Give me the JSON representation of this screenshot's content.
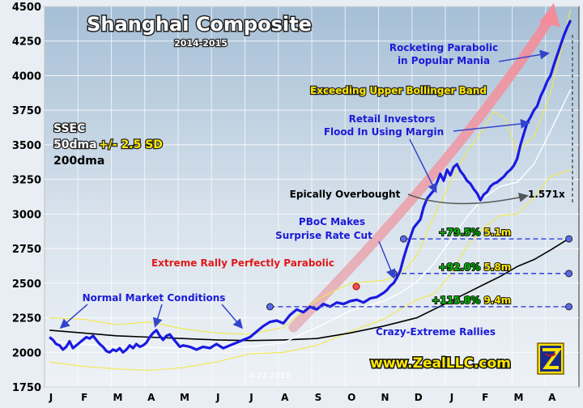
{
  "chart_data": {
    "type": "line",
    "title": "Shanghai Composite",
    "subtitle": "2014-2015",
    "ylim": [
      1750,
      4500
    ],
    "yticks": [
      "1750",
      "2000",
      "2250",
      "2500",
      "2750",
      "3000",
      "3250",
      "3500",
      "3750",
      "4000",
      "4250",
      "4500"
    ],
    "ytick_values": [
      1750,
      2000,
      2250,
      2500,
      2750,
      3000,
      3250,
      3500,
      3750,
      4000,
      4250,
      4500
    ],
    "x_categories": [
      "J",
      "F",
      "M",
      "A",
      "M",
      "J",
      "J",
      "A",
      "S",
      "O",
      "N",
      "D",
      "J",
      "F",
      "M",
      "A"
    ],
    "grid": true,
    "legend": {
      "ssec": "SSEC",
      "dma50": "50dma",
      "sd": "+/- 2.5 SD",
      "dma200": "200dma"
    },
    "colors": {
      "price": "#1a1ae0",
      "dma50": "#ffffff",
      "bands": "#f2e84a",
      "dma200": "#000000",
      "arrow": "#f0a0a0",
      "rally_green": "#00c000",
      "rally_gold": "#ffe800",
      "background_top": "#aac2d8",
      "background_bottom": "#e8eef3"
    },
    "series": [
      {
        "name": "SSEC",
        "x": [
          0,
          0.1,
          0.2,
          0.3,
          0.4,
          0.5,
          0.6,
          0.7,
          0.8,
          0.9,
          1.0,
          1.1,
          1.2,
          1.3,
          1.4,
          1.5,
          1.6,
          1.7,
          1.8,
          1.9,
          2.0,
          2.1,
          2.2,
          2.3,
          2.4,
          2.5,
          2.6,
          2.7,
          2.8,
          2.9,
          3.0,
          3.1,
          3.2,
          3.3,
          3.4,
          3.5,
          3.6,
          3.7,
          3.8,
          3.9,
          4.0,
          4.2,
          4.4,
          4.6,
          4.8,
          5.0,
          5.2,
          5.4,
          5.6,
          5.8,
          6.0,
          6.2,
          6.4,
          6.6,
          6.8,
          7.0,
          7.2,
          7.4,
          7.6,
          7.8,
          8.0,
          8.2,
          8.4,
          8.6,
          8.8,
          9.0,
          9.2,
          9.4,
          9.6,
          9.8,
          10.0,
          10.1,
          10.2,
          10.3,
          10.4,
          10.5,
          10.6,
          10.7,
          10.8,
          10.9,
          11.0,
          11.1,
          11.2,
          11.3,
          11.4,
          11.5,
          11.6,
          11.7,
          11.8,
          11.9,
          12.0,
          12.1,
          12.2,
          12.3,
          12.4,
          12.5,
          12.6,
          12.7,
          12.8,
          12.9,
          13.0,
          13.1,
          13.2,
          13.3,
          13.4,
          13.5,
          13.6,
          13.7,
          13.8,
          13.9,
          14.0,
          14.1,
          14.2,
          14.3,
          14.4,
          14.5,
          14.6,
          14.7,
          14.8,
          14.9,
          15.0,
          15.1,
          15.2,
          15.3,
          15.4,
          15.5,
          15.6
        ],
        "values": [
          2110,
          2090,
          2060,
          2050,
          2020,
          2040,
          2080,
          2030,
          2050,
          2070,
          2090,
          2110,
          2100,
          2120,
          2090,
          2060,
          2040,
          2010,
          2000,
          2020,
          2010,
          2030,
          2000,
          2020,
          2050,
          2030,
          2060,
          2040,
          2050,
          2070,
          2110,
          2140,
          2160,
          2120,
          2090,
          2120,
          2130,
          2100,
          2070,
          2040,
          2050,
          2040,
          2020,
          2040,
          2030,
          2060,
          2030,
          2050,
          2070,
          2090,
          2110,
          2150,
          2190,
          2220,
          2230,
          2210,
          2270,
          2310,
          2290,
          2330,
          2310,
          2350,
          2330,
          2360,
          2350,
          2370,
          2380,
          2360,
          2390,
          2400,
          2430,
          2450,
          2480,
          2500,
          2540,
          2590,
          2680,
          2760,
          2830,
          2900,
          2930,
          2960,
          3050,
          3110,
          3140,
          3170,
          3230,
          3290,
          3240,
          3320,
          3280,
          3340,
          3360,
          3310,
          3280,
          3240,
          3220,
          3180,
          3150,
          3100,
          3140,
          3160,
          3200,
          3220,
          3230,
          3250,
          3270,
          3300,
          3320,
          3350,
          3400,
          3500,
          3580,
          3660,
          3700,
          3750,
          3780,
          3850,
          3900,
          3960,
          4000,
          4080,
          4150,
          4220,
          4290,
          4350,
          4400
        ]
      },
      {
        "name": "50dma",
        "x": [
          0,
          1,
          2,
          3,
          4,
          5,
          6,
          7,
          8,
          9,
          10,
          10.5,
          11,
          11.5,
          12,
          12.5,
          13,
          13.5,
          14,
          14.5,
          15,
          15.6
        ],
        "values": [
          2080,
          2060,
          2040,
          2035,
          2030,
          2035,
          2040,
          2070,
          2180,
          2300,
          2370,
          2430,
          2510,
          2640,
          2810,
          2980,
          3120,
          3200,
          3230,
          3360,
          3600,
          3900
        ]
      },
      {
        "name": "+2.5 SD",
        "x": [
          0,
          1,
          2,
          3,
          4,
          5,
          6,
          7,
          8,
          9,
          10,
          10.5,
          11,
          11.5,
          12,
          12.5,
          13,
          13.3,
          13.6,
          14,
          14.5,
          15,
          15.6
        ],
        "values": [
          2250,
          2240,
          2200,
          2220,
          2170,
          2140,
          2130,
          2180,
          2380,
          2500,
          2520,
          2560,
          2700,
          2980,
          3230,
          3450,
          3620,
          3740,
          3700,
          3450,
          3560,
          3870,
          4480
        ]
      },
      {
        "name": "-2.5 SD",
        "x": [
          0,
          1,
          2,
          3,
          4,
          5,
          6,
          7,
          8,
          9,
          10,
          10.5,
          11,
          11.5,
          12,
          12.5,
          13,
          13.5,
          14,
          14.5,
          15,
          15.6
        ],
        "values": [
          1930,
          1900,
          1880,
          1870,
          1890,
          1930,
          1990,
          2000,
          2050,
          2150,
          2240,
          2310,
          2380,
          2420,
          2560,
          2770,
          2900,
          2990,
          3000,
          3120,
          3270,
          3320
        ]
      },
      {
        "name": "200dma",
        "x": [
          0,
          1,
          2,
          3,
          4,
          5,
          6,
          7,
          8,
          9,
          10,
          10.5,
          11,
          11.5,
          12,
          12.5,
          13,
          13.5,
          14,
          14.5,
          15,
          15.6
        ],
        "values": [
          2160,
          2140,
          2120,
          2110,
          2100,
          2090,
          2085,
          2090,
          2100,
          2140,
          2190,
          2220,
          2250,
          2310,
          2370,
          2430,
          2490,
          2550,
          2620,
          2670,
          2740,
          2830
        ]
      }
    ],
    "annotations": {
      "rocketing_1": "Rocketing Parabolic",
      "rocketing_2": "in Popular Mania",
      "exceeding": "Exceeding Upper Bollinger Band",
      "retail_1": "Retail Investors",
      "retail_2": "Flood In Using Margin",
      "epically": "Epically Overbought",
      "multiple": "1.571x",
      "pboc_1": "PBoC Makes",
      "pboc_2": "Surprise Rate Cut",
      "extreme": "Extreme Rally Perfectly Parabolic",
      "normal": "Normal Market Conditions",
      "crazy": "Crazy-Extreme Rallies",
      "website": "www.ZealLLC.com",
      "date": "4.22.2015"
    },
    "rallies": [
      {
        "pct": "+79.5%",
        "dur": "5.1m",
        "level": 2820
      },
      {
        "pct": "+92.0%",
        "dur": "5.8m",
        "level": 2570
      },
      {
        "pct": "+115.8%",
        "dur": "9.4m",
        "level": 2330
      }
    ]
  }
}
